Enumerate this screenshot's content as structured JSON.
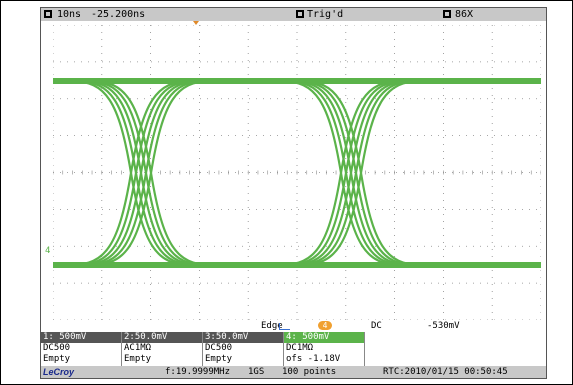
{
  "topbar": {
    "timebase": "10ns",
    "delay": "-25.200ns",
    "trigger_status": "Trig'd",
    "persistence": "86X"
  },
  "marker": {
    "channel": "4"
  },
  "infobar": {
    "edge_label": "Edge",
    "trigger_badge": "4",
    "coupling": "DC",
    "trigger_level": "-530mV"
  },
  "channels": [
    {
      "header": "1: 500mV",
      "row1": "DC500",
      "row2": "Empty"
    },
    {
      "header": "2:50.0mV",
      "row1": "AC1MΩ",
      "row2": "Empty"
    },
    {
      "header": "3:50.0mV",
      "row1": "DC500",
      "row2": "Empty"
    },
    {
      "header": "4: 500mV",
      "row1": "DC1MΩ",
      "row2": "ofs   -1.18V"
    }
  ],
  "bottombar": {
    "brand": "LeCroy",
    "frequency": "f:19.9999MHz",
    "sample_rate": "1GS",
    "points": "100 points",
    "rtc": "RTC:2010/01/15 00:50:45"
  },
  "colors": {
    "trace": "#5bb34a",
    "grid": "#8a8a8a",
    "bar": "#c8c8c8"
  }
}
